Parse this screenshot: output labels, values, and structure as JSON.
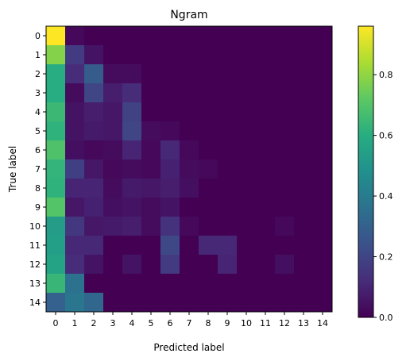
{
  "chart_data": {
    "type": "heatmap",
    "title": "Ngram",
    "xlabel": "Predicted label",
    "ylabel": "True label",
    "x_categories": [
      "0",
      "1",
      "2",
      "3",
      "4",
      "5",
      "6",
      "7",
      "8",
      "9",
      "10",
      "11",
      "12",
      "13",
      "14"
    ],
    "y_categories": [
      "0",
      "1",
      "2",
      "3",
      "4",
      "5",
      "6",
      "7",
      "8",
      "9",
      "10",
      "11",
      "12",
      "13",
      "14"
    ],
    "values": [
      [
        0.96,
        0.02,
        0.0,
        0.0,
        0.0,
        0.0,
        0.0,
        0.0,
        0.0,
        0.0,
        0.0,
        0.0,
        0.0,
        0.0,
        0.0
      ],
      [
        0.78,
        0.17,
        0.05,
        0.0,
        0.0,
        0.0,
        0.0,
        0.0,
        0.0,
        0.0,
        0.0,
        0.0,
        0.0,
        0.0,
        0.0
      ],
      [
        0.6,
        0.12,
        0.28,
        0.03,
        0.03,
        0.0,
        0.0,
        0.0,
        0.0,
        0.0,
        0.0,
        0.0,
        0.0,
        0.0,
        0.0
      ],
      [
        0.6,
        0.03,
        0.2,
        0.08,
        0.12,
        0.0,
        0.0,
        0.0,
        0.0,
        0.0,
        0.0,
        0.0,
        0.0,
        0.0,
        0.0
      ],
      [
        0.65,
        0.05,
        0.08,
        0.06,
        0.19,
        0.0,
        0.0,
        0.0,
        0.0,
        0.0,
        0.0,
        0.0,
        0.0,
        0.0,
        0.0
      ],
      [
        0.62,
        0.05,
        0.07,
        0.06,
        0.2,
        0.03,
        0.02,
        0.0,
        0.0,
        0.0,
        0.0,
        0.0,
        0.0,
        0.0,
        0.0
      ],
      [
        0.69,
        0.04,
        0.02,
        0.03,
        0.1,
        0.02,
        0.11,
        0.02,
        0.0,
        0.0,
        0.0,
        0.0,
        0.0,
        0.0,
        0.0
      ],
      [
        0.63,
        0.18,
        0.06,
        0.02,
        0.03,
        0.02,
        0.09,
        0.03,
        0.02,
        0.0,
        0.0,
        0.0,
        0.0,
        0.0,
        0.0
      ],
      [
        0.62,
        0.1,
        0.1,
        0.03,
        0.07,
        0.06,
        0.08,
        0.04,
        0.0,
        0.0,
        0.0,
        0.0,
        0.0,
        0.0,
        0.0
      ],
      [
        0.7,
        0.06,
        0.09,
        0.04,
        0.05,
        0.03,
        0.05,
        0.0,
        0.0,
        0.0,
        0.0,
        0.0,
        0.0,
        0.0,
        0.0
      ],
      [
        0.53,
        0.16,
        0.06,
        0.07,
        0.08,
        0.03,
        0.14,
        0.02,
        0.0,
        0.0,
        0.0,
        0.0,
        0.02,
        0.0,
        0.0
      ],
      [
        0.54,
        0.11,
        0.11,
        0.0,
        0.0,
        0.0,
        0.21,
        0.0,
        0.11,
        0.11,
        0.0,
        0.0,
        0.0,
        0.0,
        0.0
      ],
      [
        0.56,
        0.12,
        0.05,
        0.0,
        0.05,
        0.0,
        0.17,
        0.0,
        0.0,
        0.1,
        0.0,
        0.0,
        0.04,
        0.0,
        0.0
      ],
      [
        0.64,
        0.36,
        0.0,
        0.0,
        0.0,
        0.0,
        0.0,
        0.0,
        0.0,
        0.0,
        0.0,
        0.0,
        0.0,
        0.0,
        0.0
      ],
      [
        0.3,
        0.38,
        0.32,
        0.0,
        0.0,
        0.0,
        0.0,
        0.0,
        0.0,
        0.0,
        0.0,
        0.0,
        0.0,
        0.0,
        0.0
      ]
    ],
    "colormap": "viridis",
    "colorbar_range": [
      0.0,
      0.96
    ],
    "colorbar_ticks": [
      "0.0",
      "0.2",
      "0.4",
      "0.6",
      "0.8"
    ],
    "grid": false
  }
}
